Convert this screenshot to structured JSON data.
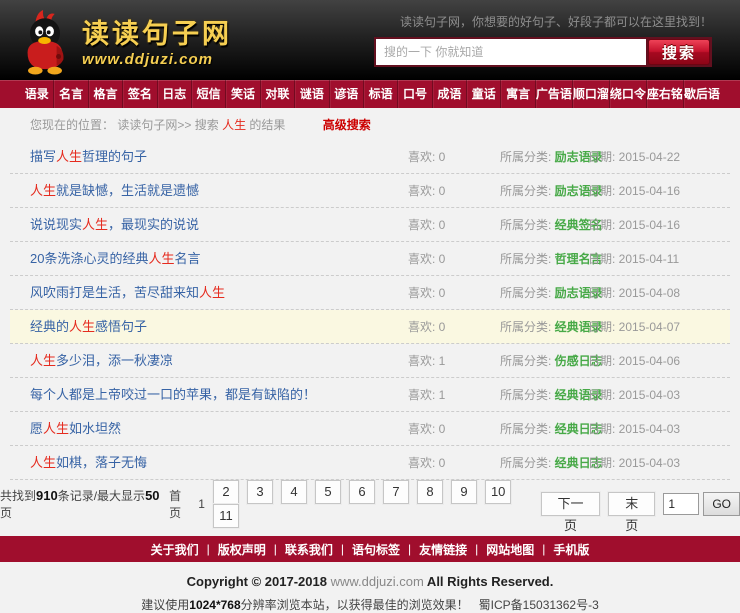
{
  "colors": {
    "accent_red": "#a00e2d",
    "keyword_red": "#e52b1f",
    "link_blue": "#3763a5",
    "category_green": "#47a947",
    "logo_yellow": "#f6cf52"
  },
  "header": {
    "site_name": "读读句子网",
    "site_url": "www.ddjuzi.com",
    "tagline": "读读句子网，你想要的好句子、好段子都可以在这里找到！",
    "search_placeholder": "搜的一下 你就知道",
    "search_button": "搜索"
  },
  "nav": {
    "items": [
      "语录",
      "名言",
      "格言",
      "签名",
      "日志",
      "短信",
      "笑话",
      "对联",
      "谜语",
      "谚语",
      "标语",
      "口号",
      "成语",
      "童话",
      "寓言",
      "广告语",
      "顺口溜",
      "绕口令",
      "座右铭",
      "歇后语"
    ]
  },
  "breadcrumb": {
    "prefix": "您现在的位置：",
    "site": "读读句子网",
    "mid": ">> 搜索 ",
    "keyword": "人生",
    "suffix": " 的结果",
    "advanced_search": "高级搜索"
  },
  "results": {
    "labels": {
      "like": "喜欢:",
      "category": "所属分类:",
      "date": "日期:"
    },
    "rows": [
      {
        "title_pre": "描写",
        "keyword": "人生",
        "title_post": "哲理的句子",
        "likes": "0",
        "category": "励志语录",
        "date": "2015-04-22",
        "highlight": false
      },
      {
        "title_pre": "",
        "keyword": "人生",
        "title_post": "就是缺憾，生活就是遗憾",
        "likes": "0",
        "category": "励志语录",
        "date": "2015-04-16",
        "highlight": false
      },
      {
        "title_pre": "说说现实",
        "keyword": "人生",
        "title_post": "，最现实的说说",
        "likes": "0",
        "category": "经典签名",
        "date": "2015-04-16",
        "highlight": false
      },
      {
        "title_pre": "20条洗涤心灵的经典",
        "keyword": "人生",
        "title_post": "名言",
        "likes": "0",
        "category": "哲理名言",
        "date": "2015-04-11",
        "highlight": false
      },
      {
        "title_pre": "风吹雨打是生活，苦尽甜来知",
        "keyword": "人生",
        "title_post": "",
        "likes": "0",
        "category": "励志语录",
        "date": "2015-04-08",
        "highlight": false
      },
      {
        "title_pre": "经典的",
        "keyword": "人生",
        "title_post": "感悟句子",
        "likes": "0",
        "category": "经典语录",
        "date": "2015-04-07",
        "highlight": true
      },
      {
        "title_pre": "",
        "keyword": "人生",
        "title_post": "多少泪，添一秋凄凉",
        "likes": "1",
        "category": "伤感日志",
        "date": "2015-04-06",
        "highlight": false
      },
      {
        "title_pre": "每个人都是上帝咬过一口的苹果，都是有缺陷的！",
        "keyword": "",
        "title_post": "",
        "likes": "1",
        "category": "经典语录",
        "date": "2015-04-03",
        "highlight": false
      },
      {
        "title_pre": "愿",
        "keyword": "人生",
        "title_post": "如水坦然",
        "likes": "0",
        "category": "经典日志",
        "date": "2015-04-03",
        "highlight": false
      },
      {
        "title_pre": "",
        "keyword": "人生",
        "title_post": "如棋，落子无悔",
        "likes": "0",
        "category": "经典日志",
        "date": "2015-04-03",
        "highlight": false
      }
    ]
  },
  "pagination": {
    "summary_pre": "共找到",
    "total": "910",
    "summary_mid": "条记录/最大显示",
    "max_pages": "50",
    "summary_post": "页",
    "first_label": "首页",
    "current_page": "1",
    "pages": [
      "2",
      "3",
      "4",
      "5",
      "6",
      "7",
      "8",
      "9",
      "10",
      "11"
    ],
    "next_label": "下一页",
    "last_label": "末页",
    "goto_value": "1",
    "go_label": "GO"
  },
  "footer": {
    "links": [
      "关于我们",
      "版权声明",
      "联系我们",
      "语句标签",
      "友情链接",
      "网站地图",
      "手机版"
    ],
    "separator": "|",
    "copyright_pre": "Copyright © 2017-2018 ",
    "copyright_site": "www.ddjuzi.com",
    "copyright_post": " All Rights Reserved.",
    "notice_pre": "建议使用",
    "notice_resolution": "1024*768",
    "notice_post": "分辨率浏览本站，以获得最佳的浏览效果！",
    "icp": "蜀ICP备15031362号-3"
  }
}
